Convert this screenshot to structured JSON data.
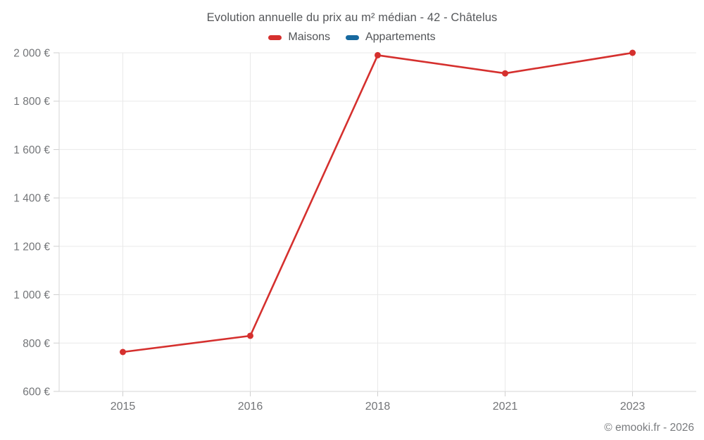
{
  "title": "Evolution annuelle du prix au m² médian - 42 - Châtelus",
  "footer": "© emooki.fr - 2026",
  "legend": [
    {
      "label": "Maisons",
      "color": "#d5302e"
    },
    {
      "label": "Appartements",
      "color": "#17699f"
    }
  ],
  "chart_data": {
    "type": "line",
    "categories": [
      "2015",
      "2016",
      "2018",
      "2021",
      "2023"
    ],
    "series": [
      {
        "name": "Maisons",
        "color": "#d5302e",
        "values": [
          763,
          830,
          1990,
          1915,
          2000
        ]
      },
      {
        "name": "Appartements",
        "color": "#17699f",
        "values": []
      }
    ],
    "ylim": [
      600,
      2000
    ],
    "y_ticks": [
      {
        "value": 600,
        "label": "600 €"
      },
      {
        "value": 800,
        "label": "800 €"
      },
      {
        "value": 1000,
        "label": "1 000 €"
      },
      {
        "value": 1200,
        "label": "1 200 €"
      },
      {
        "value": 1400,
        "label": "1 400 €"
      },
      {
        "value": 1600,
        "label": "1 600 €"
      },
      {
        "value": 1800,
        "label": "1 800 €"
      },
      {
        "value": 2000,
        "label": "2 000 €"
      }
    ],
    "grid": true,
    "legend_position": "top",
    "marker": "circle"
  },
  "colors": {
    "background": "#ffffff",
    "grid": "#e9e9e9",
    "axis": "#d6d6d6",
    "tick": "#cfcfcf",
    "tick_text": "#737578",
    "title_text": "#55575a",
    "legend_text": "#515356",
    "footer_text": "#797b7e"
  }
}
